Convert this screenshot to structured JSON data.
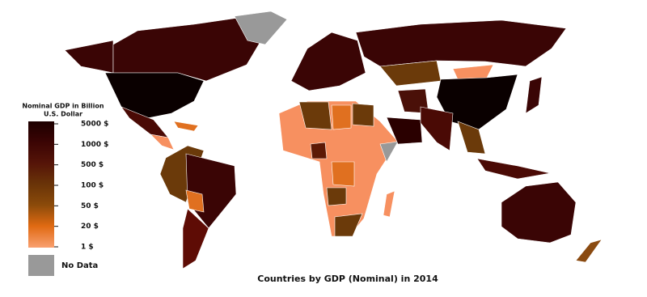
{
  "title": "Countries by GDP (Nominal) in 2014",
  "legend": {
    "title": [
      "Nominal GDP in Billion",
      "U.S. Dollar"
    ],
    "levels": [
      "5000 $",
      "1000 $",
      "500 $",
      "100 $",
      "50 $",
      "20 $",
      "1 $"
    ],
    "no_data": "No Data"
  }
}
